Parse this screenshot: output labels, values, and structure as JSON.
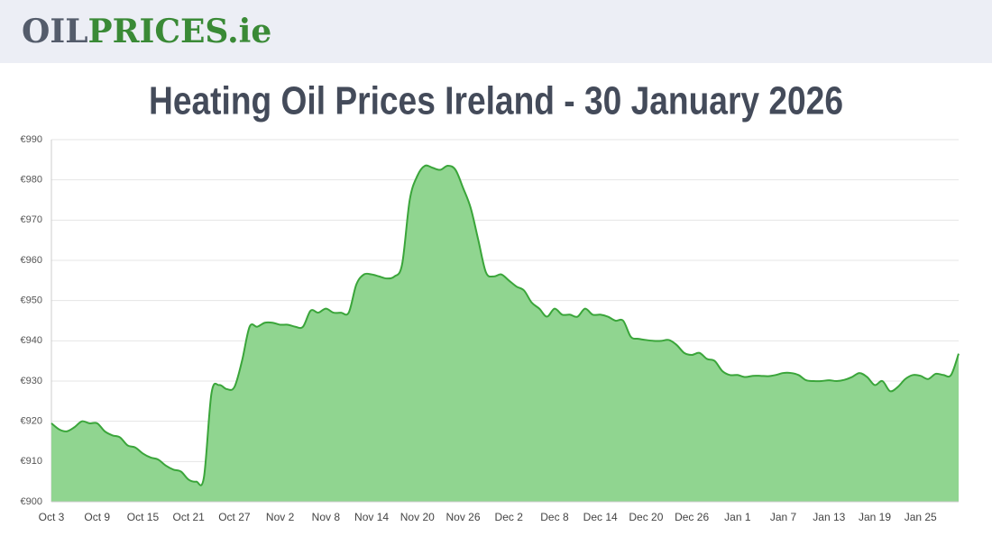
{
  "header": {
    "logo_dark": "OIL",
    "logo_green": "PRICES.ie"
  },
  "chart_data": {
    "type": "area",
    "title": "Heating Oil Prices Ireland - 30 January 2026",
    "categories": [
      "Oct 3",
      null,
      null,
      null,
      null,
      null,
      "Oct 9",
      null,
      null,
      null,
      null,
      null,
      "Oct 15",
      null,
      null,
      null,
      null,
      null,
      "Oct 21",
      null,
      null,
      null,
      null,
      null,
      "Oct 27",
      null,
      null,
      null,
      null,
      null,
      "Nov 2",
      null,
      null,
      null,
      null,
      null,
      "Nov 8",
      null,
      null,
      null,
      null,
      null,
      "Nov 14",
      null,
      null,
      null,
      null,
      null,
      "Nov 20",
      null,
      null,
      null,
      null,
      null,
      "Nov 26",
      null,
      null,
      null,
      null,
      null,
      "Dec 2",
      null,
      null,
      null,
      null,
      null,
      "Dec 8",
      null,
      null,
      null,
      null,
      null,
      "Dec 14",
      null,
      null,
      null,
      null,
      null,
      "Dec 20",
      null,
      null,
      null,
      null,
      null,
      "Dec 26",
      null,
      null,
      null,
      null,
      null,
      "Jan 1",
      null,
      null,
      null,
      null,
      null,
      "Jan 7",
      null,
      null,
      null,
      null,
      null,
      "Jan 13",
      null,
      null,
      null,
      null,
      null,
      "Jan 19",
      null,
      null,
      null,
      null,
      null,
      "Jan 25",
      null,
      null,
      null,
      null,
      null
    ],
    "values": [
      919.5,
      918,
      917.5,
      918.5,
      920,
      919.5,
      919.5,
      917.5,
      916.5,
      916,
      914,
      913.5,
      912,
      911,
      910.5,
      909,
      908,
      907.5,
      905.5,
      905,
      906,
      927,
      929,
      928,
      928.5,
      935,
      943.5,
      943.5,
      944.5,
      944.5,
      944,
      944,
      943.5,
      943.5,
      947.5,
      947,
      948,
      947,
      947,
      947,
      954,
      956.5,
      956.5,
      956,
      955.5,
      956,
      959,
      975,
      981,
      983.5,
      983,
      982.5,
      983.5,
      982.5,
      978,
      973,
      965,
      957,
      956,
      956.5,
      955,
      953.5,
      952.5,
      949.5,
      948,
      946,
      948,
      946.5,
      946.5,
      946,
      948,
      946.5,
      946.5,
      946,
      945,
      945,
      941,
      940.5,
      940.2,
      940,
      940,
      940.2,
      939,
      937,
      936.5,
      937,
      935.5,
      935,
      932.5,
      931.5,
      931.5,
      931,
      931.3,
      931.3,
      931.2,
      931.5,
      932,
      932,
      931.5,
      930.2,
      930,
      930,
      930.2,
      930,
      930.3,
      931,
      932,
      931,
      929,
      930,
      927.5,
      928.5,
      930.5,
      931.5,
      931.3,
      930.5,
      931.8,
      931.5,
      931.5,
      936.8
    ],
    "color": "#3aa53a",
    "fill": "#90d590",
    "ylim": [
      900,
      990
    ],
    "yticks": [
      {
        "value": 900,
        "label": "€900"
      },
      {
        "value": 910,
        "label": "€910"
      },
      {
        "value": 920,
        "label": "€920"
      },
      {
        "value": 930,
        "label": "€930"
      },
      {
        "value": 940,
        "label": "€940"
      },
      {
        "value": 950,
        "label": "€950"
      },
      {
        "value": 960,
        "label": "€960"
      },
      {
        "value": 970,
        "label": "€970"
      },
      {
        "value": 980,
        "label": "€980"
      },
      {
        "value": 990,
        "label": "€990"
      }
    ],
    "grid": true
  }
}
